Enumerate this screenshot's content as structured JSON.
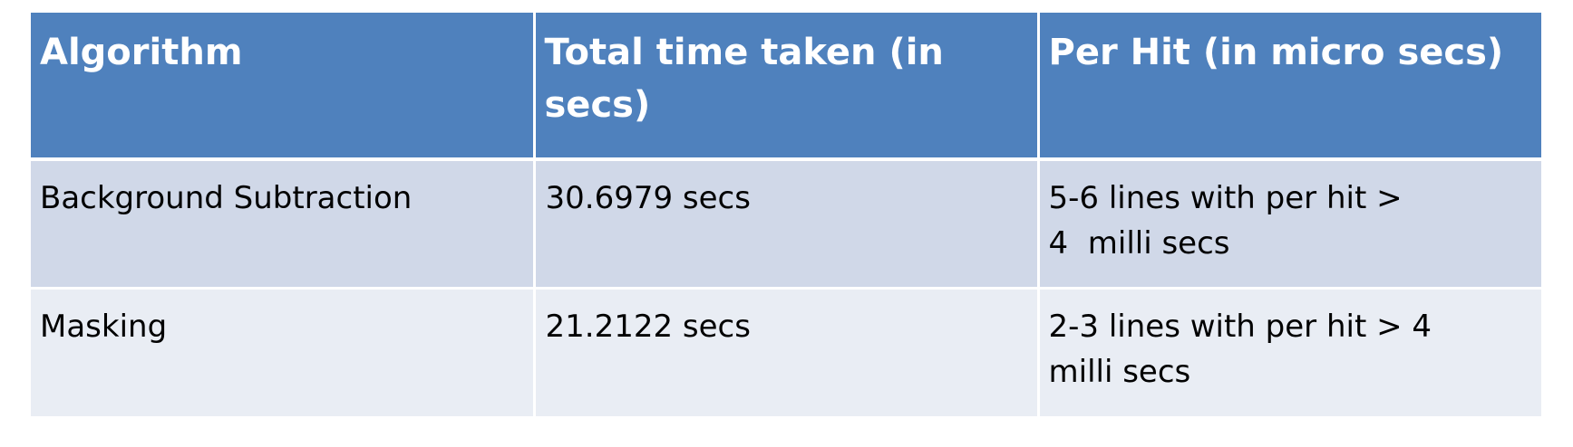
{
  "table": {
    "headers": [
      "Algorithm",
      "Total time taken (in secs)",
      "Per Hit (in micro secs)"
    ],
    "rows": [
      {
        "algorithm": "Background Subtraction",
        "total_time": "30.6979 secs",
        "per_hit_line1": "5-6 lines with per hit >",
        "per_hit_line2": "4  milli secs"
      },
      {
        "algorithm": "Masking",
        "total_time": "21.2122 secs",
        "per_hit_line1": "2-3 lines with per hit > 4",
        "per_hit_line2": "milli secs"
      }
    ],
    "colors": {
      "header_bg": "#4f81bd",
      "row_odd_bg": "#d0d8e8",
      "row_even_bg": "#e9edf4"
    }
  }
}
